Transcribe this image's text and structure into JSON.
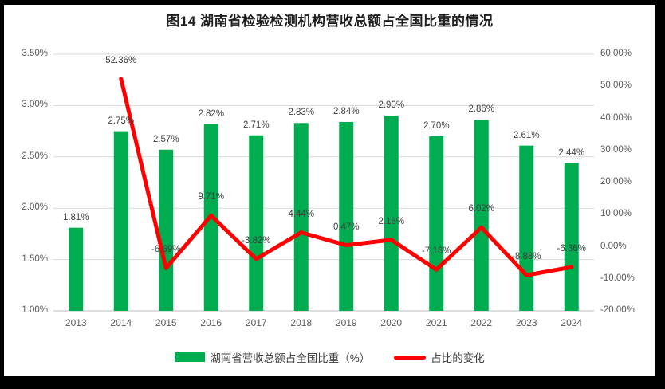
{
  "frame": {
    "background": "#000000",
    "canvas_background": "#ffffff"
  },
  "chart_data": {
    "type": "bar+line combo",
    "title": "图14 湖南省检验检测机构营收总额占全国比重的情况",
    "categories": [
      "2013",
      "2014",
      "2015",
      "2016",
      "2017",
      "2018",
      "2019",
      "2020",
      "2021",
      "2022",
      "2023",
      "2024"
    ],
    "series": [
      {
        "name": "湖南省营收总额占全国比重（%）",
        "type": "bar",
        "axis": "left",
        "color": "#00AC50",
        "values": [
          1.81,
          2.75,
          2.57,
          2.82,
          2.71,
          2.83,
          2.84,
          2.9,
          2.7,
          2.86,
          2.61,
          2.44
        ],
        "labels": [
          "1.81%",
          "2.75%",
          "2.57%",
          "2.82%",
          "2.71%",
          "2.83%",
          "2.84%",
          "2.90%",
          "2.70%",
          "2.86%",
          "2.61%",
          "2.44%"
        ]
      },
      {
        "name": "占比的变化",
        "type": "line",
        "axis": "right",
        "color": "#FE0000",
        "values": [
          null,
          52.36,
          -6.69,
          9.71,
          -3.82,
          4.44,
          0.47,
          2.16,
          -7.16,
          6.02,
          -8.88,
          -6.36
        ],
        "labels": [
          "",
          "52.36%",
          "-6.69%",
          "9.71%",
          "-3.82%",
          "4.44%",
          "0.47%",
          "2.16%",
          "-7.16%",
          "6.02%",
          "-8.88%",
          "-6.36%"
        ]
      }
    ],
    "left_axis": {
      "min": 1.0,
      "max": 3.5,
      "ticks": [
        {
          "v": 3.5,
          "label": "3.50%"
        },
        {
          "v": 3.0,
          "label": "3.00%"
        },
        {
          "v": 2.5,
          "label": "2.50%"
        },
        {
          "v": 2.0,
          "label": "2.00%"
        },
        {
          "v": 1.5,
          "label": "1.50%"
        },
        {
          "v": 1.0,
          "label": "1.00%"
        }
      ]
    },
    "right_axis": {
      "min": -20,
      "max": 60,
      "ticks": [
        {
          "v": 60,
          "label": "60.00%"
        },
        {
          "v": 50,
          "label": "50.00%"
        },
        {
          "v": 40,
          "label": "40.00%"
        },
        {
          "v": 30,
          "label": "30.00%"
        },
        {
          "v": 20,
          "label": "20.00%"
        },
        {
          "v": 10,
          "label": "10.00%"
        },
        {
          "v": 0,
          "label": "0.00%"
        },
        {
          "v": -10,
          "label": "-10.00%"
        },
        {
          "v": -20,
          "label": "-20.00%"
        }
      ]
    },
    "grid": "horizontal gridlines on, light gray",
    "legend_position": "bottom",
    "colors": {
      "gridline": "#D9D9D9",
      "baseline": "#BFBFBF",
      "axis_text": "#595959",
      "data_label_text": "#404040",
      "title_text": "#1F1F1F"
    }
  }
}
